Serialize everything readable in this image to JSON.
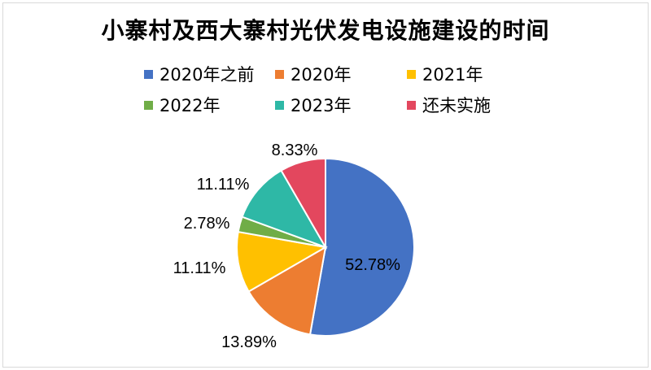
{
  "chart_data": {
    "type": "pie",
    "title": "小寨村及西大寨村光伏发电设施建设的时间",
    "legend_position": "top",
    "categories": [
      "2020年之前",
      "2020年",
      "2021年",
      "2022年",
      "2023年",
      "还未实施"
    ],
    "values": [
      52.78,
      13.89,
      11.11,
      2.78,
      11.11,
      8.33
    ],
    "data_labels": [
      "52.78%",
      "13.89%",
      "11.11%",
      "2.78%",
      "11.11%",
      "8.33%"
    ],
    "colors": [
      "#4472C4",
      "#ED7D31",
      "#FFC000",
      "#70AD47",
      "#2EB8A6",
      "#E3475E"
    ]
  }
}
